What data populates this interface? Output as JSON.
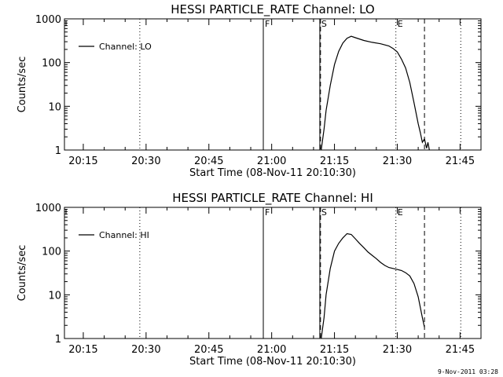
{
  "chart_data": [
    {
      "type": "line",
      "title": "HESSI PARTICLE_RATE Channel: LO",
      "xlabel": "Start Time (08-Nov-11 20:10:30)",
      "ylabel": "Counts/sec",
      "y_scale": "log",
      "ylim": [
        1,
        1000
      ],
      "xlim": [
        "20:10:30",
        "21:50:00"
      ],
      "x_ticks": [
        "20:15",
        "20:30",
        "20:45",
        "21:00",
        "21:15",
        "21:30",
        "21:45"
      ],
      "y_ticks": [
        "1",
        "10",
        "100",
        "1000"
      ],
      "legend": {
        "position": "top-left",
        "entries": [
          "Channel: LO"
        ]
      },
      "markers": [
        {
          "label": "F",
          "time": "20:58:00",
          "style": "solid"
        },
        {
          "label": "S",
          "time": "21:11:30",
          "style": "solid"
        },
        {
          "label": "",
          "time": "21:11:40",
          "style": "dashed"
        },
        {
          "label": "E",
          "time": "21:29:40",
          "style": "dotted"
        },
        {
          "label": "",
          "time": "21:36:30",
          "style": "dashed"
        },
        {
          "label": "",
          "time": "20:28:30",
          "style": "dotted"
        },
        {
          "label": "",
          "time": "21:45:10",
          "style": "dotted"
        }
      ],
      "series": [
        {
          "name": "Channel: LO",
          "x": [
            "21:11:50",
            "21:12:30",
            "21:13:00",
            "21:14:00",
            "21:15:00",
            "21:16:00",
            "21:17:00",
            "21:18:00",
            "21:19:00",
            "21:20:00",
            "21:22:00",
            "21:24:00",
            "21:26:00",
            "21:28:00",
            "21:29:00",
            "21:30:00",
            "21:31:00",
            "21:32:00",
            "21:33:00",
            "21:34:00",
            "21:35:00",
            "21:35:30",
            "21:36:00",
            "21:36:30",
            "21:37:00",
            "21:37:20",
            "21:37:40"
          ],
          "y": [
            1,
            3,
            8,
            30,
            90,
            180,
            280,
            360,
            400,
            370,
            320,
            290,
            270,
            240,
            210,
            175,
            120,
            75,
            35,
            12,
            4,
            2.5,
            1.5,
            1.8,
            1.1,
            1.5,
            1
          ]
        }
      ]
    },
    {
      "type": "line",
      "title": "HESSI PARTICLE_RATE Channel: HI",
      "xlabel": "Start Time (08-Nov-11 20:10:30)",
      "ylabel": "Counts/sec",
      "y_scale": "log",
      "ylim": [
        1,
        1000
      ],
      "xlim": [
        "20:10:30",
        "21:50:00"
      ],
      "x_ticks": [
        "20:15",
        "20:30",
        "20:45",
        "21:00",
        "21:15",
        "21:30",
        "21:45"
      ],
      "y_ticks": [
        "1",
        "10",
        "100",
        "1000"
      ],
      "legend": {
        "position": "top-left",
        "entries": [
          "Channel: HI"
        ]
      },
      "markers": [
        {
          "label": "F",
          "time": "20:58:00",
          "style": "solid"
        },
        {
          "label": "S",
          "time": "21:11:30",
          "style": "solid"
        },
        {
          "label": "",
          "time": "21:11:40",
          "style": "dashed"
        },
        {
          "label": "E",
          "time": "21:29:40",
          "style": "dotted"
        },
        {
          "label": "",
          "time": "21:36:30",
          "style": "dashed"
        },
        {
          "label": "",
          "time": "20:28:30",
          "style": "dotted"
        },
        {
          "label": "",
          "time": "21:45:10",
          "style": "dotted"
        }
      ],
      "series": [
        {
          "name": "Channel: HI",
          "x": [
            "21:11:50",
            "21:12:30",
            "21:13:00",
            "21:14:00",
            "21:15:00",
            "21:16:00",
            "21:17:00",
            "21:18:00",
            "21:19:00",
            "21:20:00",
            "21:21:00",
            "21:22:00",
            "21:23:00",
            "21:24:00",
            "21:25:00",
            "21:26:00",
            "21:27:00",
            "21:28:00",
            "21:29:00",
            "21:30:00",
            "21:31:00",
            "21:32:00",
            "21:33:00",
            "21:34:00",
            "21:35:00",
            "21:36:00",
            "21:36:30"
          ],
          "y": [
            1,
            3,
            10,
            40,
            100,
            150,
            200,
            250,
            240,
            190,
            150,
            120,
            95,
            80,
            67,
            55,
            47,
            42,
            40,
            38,
            36,
            32,
            27,
            18,
            9,
            3,
            1.8
          ]
        }
      ]
    }
  ],
  "footer": "9-Nov-2011 03:28",
  "colors": {
    "line": "#000000",
    "background": "#ffffff"
  }
}
